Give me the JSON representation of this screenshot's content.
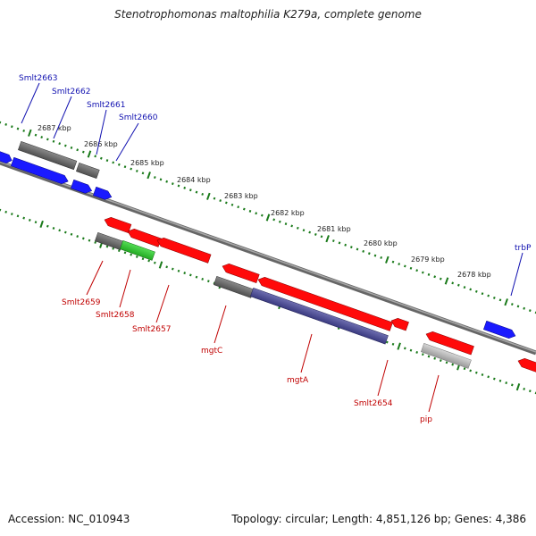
{
  "title": "Stenotrophomonas maltophilia K279a, complete genome",
  "accession": "Accession: NC_010943",
  "summary": "Topology: circular; Length: 4,851,126 bp; Genes: 4,386",
  "colors": {
    "forward": "#1a1aff",
    "reverse": "#ff0a0a",
    "top_label": "#1010b0",
    "bottom_label": "#c00000",
    "backbone": "#777777",
    "tick": "#1a7a1a"
  },
  "ruler_labels": [
    "2687 kbp",
    "2686 kbp",
    "2685 kbp",
    "2684 kbp",
    "2683 kbp",
    "2682 kbp",
    "2681 kbp",
    "2680 kbp",
    "2679 kbp",
    "2678 kbp"
  ],
  "top_gene_labels": [
    "Smlt2663",
    "Smlt2662",
    "Smlt2661",
    "Smlt2660",
    "trbP"
  ],
  "bottom_gene_labels": [
    "Smlt2659",
    "Smlt2658",
    "Smlt2657",
    "mgtC",
    "mgtA",
    "Smlt2654",
    "pip"
  ]
}
